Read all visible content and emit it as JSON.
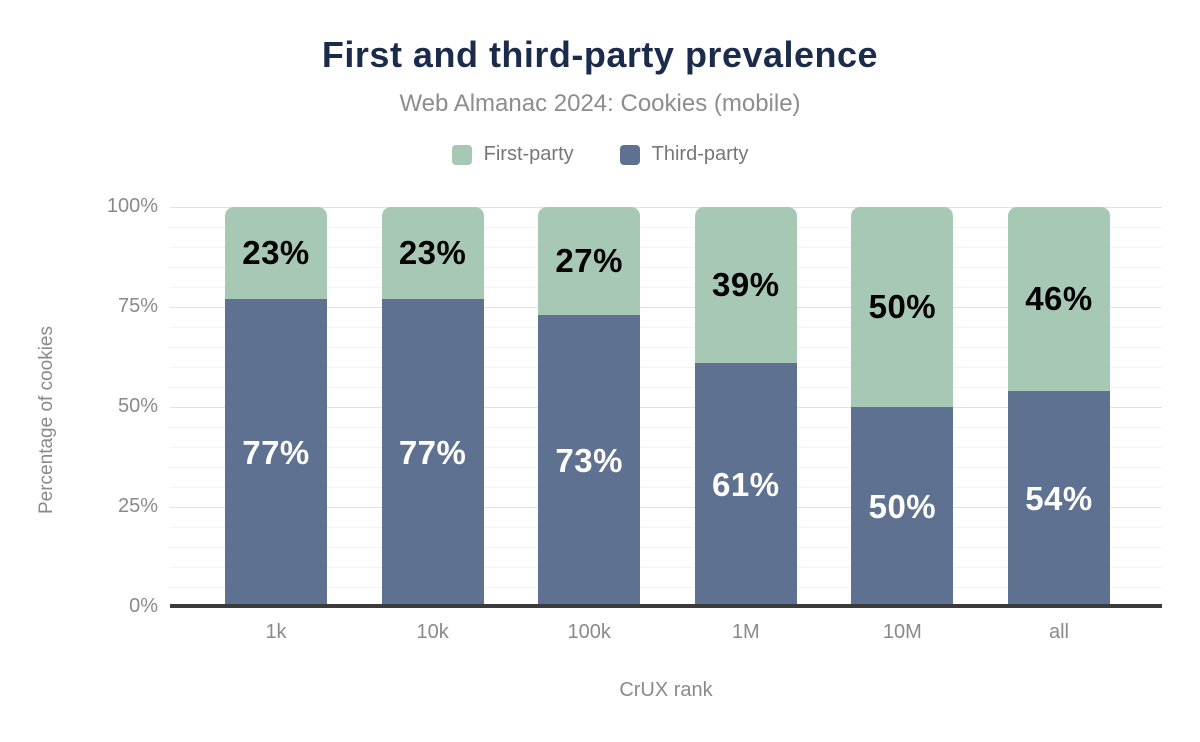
{
  "chart_data": {
    "type": "bar",
    "stacked": true,
    "title": "First and third-party prevalence",
    "subtitle": "Web Almanac 2024: Cookies (mobile)",
    "xlabel": "CrUX rank",
    "ylabel": "Percentage of cookies",
    "categories": [
      "1k",
      "10k",
      "100k",
      "1M",
      "10M",
      "all"
    ],
    "series": [
      {
        "name": "First-party",
        "color": "#a6c8b5",
        "label_color": "#000000",
        "values": [
          23,
          23,
          27,
          39,
          50,
          46
        ],
        "labels": [
          "23%",
          "23%",
          "27%",
          "39%",
          "50%",
          "46%"
        ]
      },
      {
        "name": "Third-party",
        "color": "#5f7190",
        "label_color": "#ffffff",
        "values": [
          77,
          77,
          73,
          61,
          50,
          54
        ],
        "labels": [
          "77%",
          "77%",
          "73%",
          "61%",
          "50%",
          "54%"
        ]
      }
    ],
    "ylim": [
      0,
      100
    ],
    "yticks": [
      {
        "value": 100,
        "label": "100%"
      },
      {
        "value": 75,
        "label": "75%"
      },
      {
        "value": 50,
        "label": "50%"
      },
      {
        "value": 25,
        "label": "25%"
      },
      {
        "value": 0,
        "label": "0%"
      }
    ],
    "minor_grid_step": 5,
    "grid": true,
    "legend_position": "top"
  },
  "legend": {
    "items": [
      {
        "label": "First-party",
        "color": "#a6c8b5"
      },
      {
        "label": "Third-party",
        "color": "#5f7190"
      }
    ]
  },
  "colors": {
    "title": "#1b2b4b",
    "subtitle": "#8d8d8d",
    "axis_line": "#3b3b3b",
    "tick_label": "#8a8a8a",
    "legend_label": "#777777",
    "major_grid": "#e2e2e2",
    "minor_grid": "#f3f3f3",
    "background": "#ffffff"
  }
}
